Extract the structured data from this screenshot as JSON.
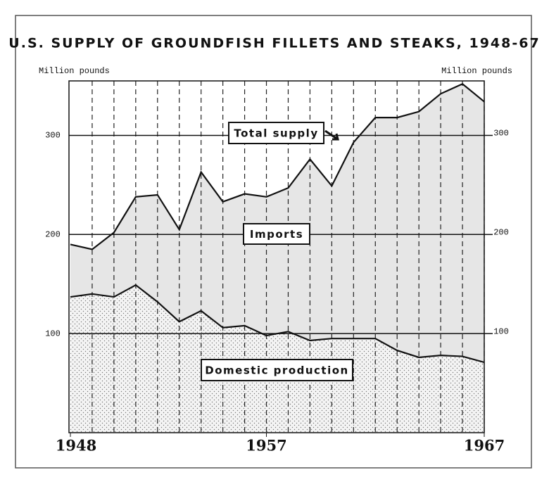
{
  "chart_data": {
    "type": "stacked-area",
    "title": "U.S. SUPPLY OF GROUNDFISH FILLETS AND STEAKS, 1948-67",
    "ylabel": "Million pounds",
    "y2label": "Million pounds",
    "annotation": "Total supply",
    "x": [
      1948,
      1949,
      1950,
      1951,
      1952,
      1953,
      1954,
      1955,
      1956,
      1957,
      1958,
      1959,
      1960,
      1961,
      1962,
      1963,
      1964,
      1965,
      1966,
      1967
    ],
    "xlim": [
      1948,
      1967
    ],
    "xticks": [
      1948,
      1957,
      1967
    ],
    "ylim": [
      0,
      355
    ],
    "yticks": [
      100,
      200,
      300
    ],
    "y2lim": [
      0,
      355
    ],
    "y2ticks": [
      100,
      200,
      300
    ],
    "grid": true,
    "series": [
      {
        "name": "Domestic production",
        "color": "#f2f2f2",
        "values": [
          137,
          140,
          137,
          149,
          132,
          112,
          123,
          106,
          108,
          98,
          102,
          93,
          95,
          95,
          95,
          83,
          76,
          78,
          77,
          71
        ]
      },
      {
        "name": "Imports",
        "color": "#e6e6e6",
        "values": [
          53,
          45,
          65,
          89,
          108,
          93,
          140,
          127,
          133,
          140,
          145,
          183,
          154,
          198,
          223,
          235,
          248,
          264,
          275,
          263
        ]
      }
    ]
  }
}
